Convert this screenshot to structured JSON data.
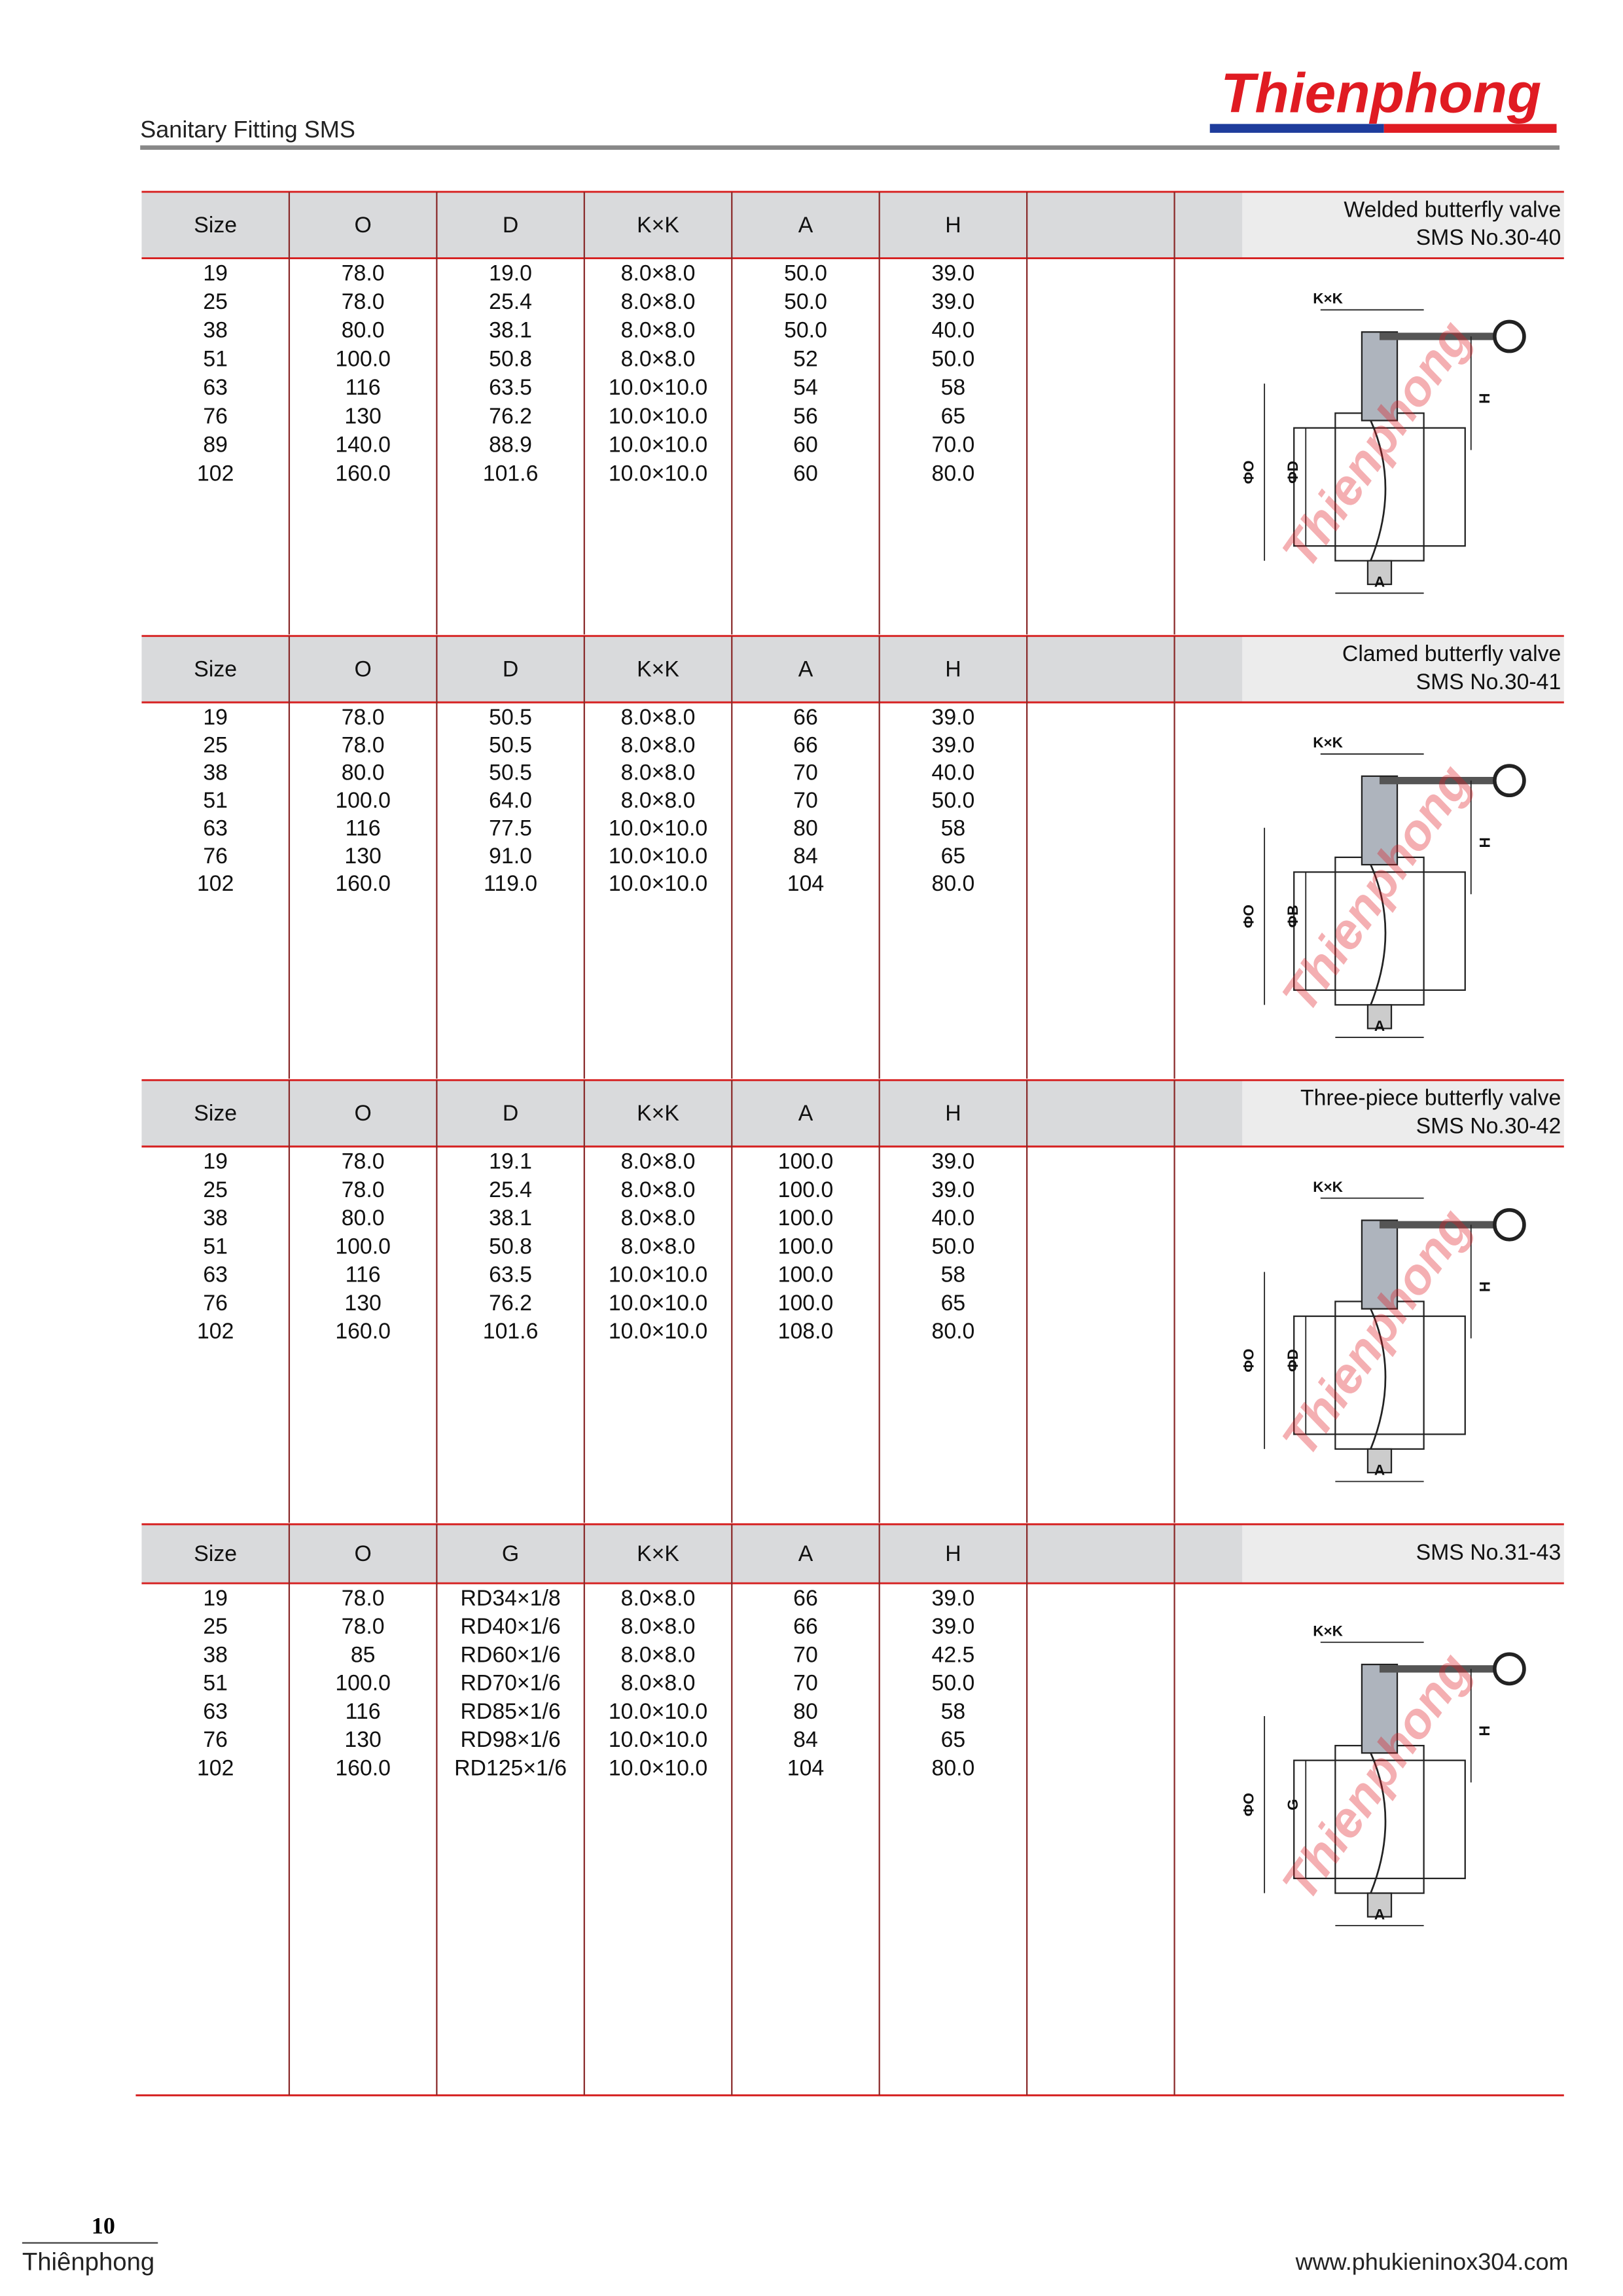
{
  "header": {
    "title": "Sanitary Fitting SMS",
    "brand": "Thienphong"
  },
  "sections": [
    {
      "caption": [
        "Welded butterfly valve",
        "SMS   No.30-40"
      ],
      "columns": [
        "Size",
        "O",
        "D",
        "K×K",
        "A",
        "H"
      ],
      "rows": [
        [
          "19",
          "78.0",
          "19.0",
          "8.0×8.0",
          "50.0",
          "39.0"
        ],
        [
          "25",
          "78.0",
          "25.4",
          "8.0×8.0",
          "50.0",
          "39.0"
        ],
        [
          "38",
          "80.0",
          "38.1",
          "8.0×8.0",
          "50.0",
          "40.0"
        ],
        [
          "51",
          "100.0",
          "50.8",
          "8.0×8.0",
          "52",
          "50.0"
        ],
        [
          "63",
          "116",
          "63.5",
          "10.0×10.0",
          "54",
          "58"
        ],
        [
          "76",
          "130",
          "76.2",
          "10.0×10.0",
          "56",
          "65"
        ],
        [
          "89",
          "140.0",
          "88.9",
          "10.0×10.0",
          "60",
          "70.0"
        ],
        [
          "102",
          "160.0",
          "101.6",
          "10.0×10.0",
          "60",
          "80.0"
        ]
      ],
      "diagram_labels": [
        "K×K",
        "ΦO",
        "ΦD",
        "H",
        "A"
      ]
    },
    {
      "caption": [
        "Clamed butterfly valve",
        "SMS   No.30-41"
      ],
      "columns": [
        "Size",
        "O",
        "D",
        "K×K",
        "A",
        "H"
      ],
      "rows": [
        [
          "19",
          "78.0",
          "50.5",
          "8.0×8.0",
          "66",
          "39.0"
        ],
        [
          "25",
          "78.0",
          "50.5",
          "8.0×8.0",
          "66",
          "39.0"
        ],
        [
          "38",
          "80.0",
          "50.5",
          "8.0×8.0",
          "70",
          "40.0"
        ],
        [
          "51",
          "100.0",
          "64.0",
          "8.0×8.0",
          "70",
          "50.0"
        ],
        [
          "63",
          "116",
          "77.5",
          "10.0×10.0",
          "80",
          "58"
        ],
        [
          "76",
          "130",
          "91.0",
          "10.0×10.0",
          "84",
          "65"
        ],
        [
          "102",
          "160.0",
          "119.0",
          "10.0×10.0",
          "104",
          "80.0"
        ]
      ],
      "diagram_labels": [
        "K×K",
        "ΦO",
        "ΦB",
        "H",
        "A"
      ]
    },
    {
      "caption": [
        "Three-piece butterfly valve",
        "SMS   No.30-42"
      ],
      "columns": [
        "Size",
        "O",
        "D",
        "K×K",
        "A",
        "H"
      ],
      "rows": [
        [
          "19",
          "78.0",
          "19.1",
          "8.0×8.0",
          "100.0",
          "39.0"
        ],
        [
          "25",
          "78.0",
          "25.4",
          "8.0×8.0",
          "100.0",
          "39.0"
        ],
        [
          "38",
          "80.0",
          "38.1",
          "8.0×8.0",
          "100.0",
          "40.0"
        ],
        [
          "51",
          "100.0",
          "50.8",
          "8.0×8.0",
          "100.0",
          "50.0"
        ],
        [
          "63",
          "116",
          "63.5",
          "10.0×10.0",
          "100.0",
          "58"
        ],
        [
          "76",
          "130",
          "76.2",
          "10.0×10.0",
          "100.0",
          "65"
        ],
        [
          "102",
          "160.0",
          "101.6",
          "10.0×10.0",
          "108.0",
          "80.0"
        ]
      ],
      "diagram_labels": [
        "K×K",
        "ΦO",
        "ΦD",
        "H",
        "A"
      ]
    },
    {
      "caption": [
        "SMS   No.31-43"
      ],
      "columns": [
        "Size",
        "O",
        "G",
        "K×K",
        "A",
        "H"
      ],
      "rows": [
        [
          "19",
          "78.0",
          "RD34×1/8",
          "8.0×8.0",
          "66",
          "39.0"
        ],
        [
          "25",
          "78.0",
          "RD40×1/6",
          "8.0×8.0",
          "66",
          "39.0"
        ],
        [
          "38",
          "85",
          "RD60×1/6",
          "8.0×8.0",
          "70",
          "42.5"
        ],
        [
          "51",
          "100.0",
          "RD70×1/6",
          "8.0×8.0",
          "70",
          "50.0"
        ],
        [
          "63",
          "116",
          "RD85×1/6",
          "10.0×10.0",
          "80",
          "58"
        ],
        [
          "76",
          "130",
          "RD98×1/6",
          "10.0×10.0",
          "84",
          "65"
        ],
        [
          "102",
          "160.0",
          "RD125×1/6",
          "10.0×10.0",
          "104",
          "80.0"
        ]
      ],
      "diagram_labels": [
        "K×K",
        "ΦO",
        "G",
        "H",
        "A"
      ]
    }
  ],
  "footer": {
    "page": "10",
    "left": "Thiênphong",
    "right": "www.phukieninox304.com"
  }
}
